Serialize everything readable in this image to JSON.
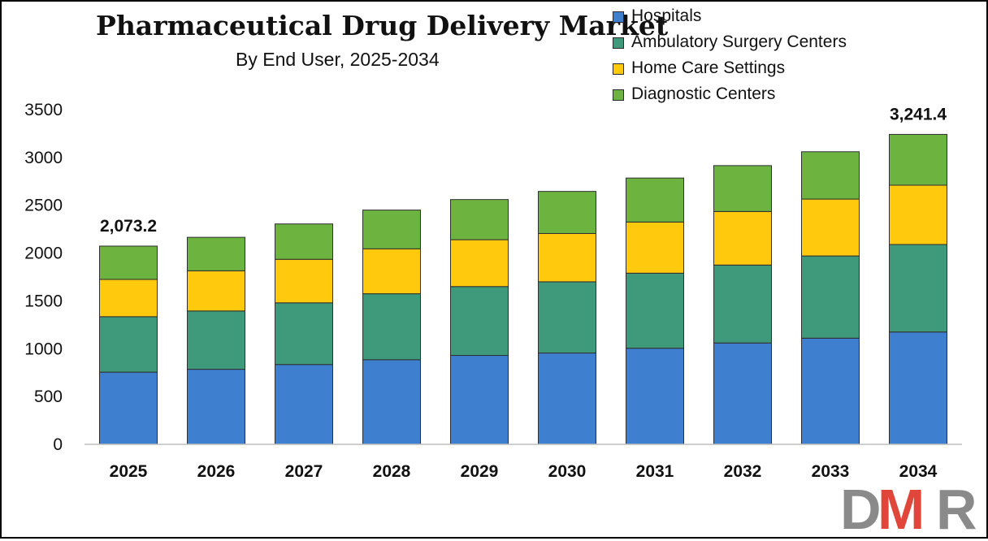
{
  "chart_data": {
    "type": "bar",
    "stacked": true,
    "title": "Pharmaceutical Drug Delivery Market",
    "subtitle": "By End User, 2025-2034",
    "xlabel": "",
    "ylabel": "",
    "ylim": [
      0,
      3500
    ],
    "yticks": [
      0,
      500,
      1000,
      1500,
      2000,
      2500,
      3000,
      3500
    ],
    "categories": [
      "2025",
      "2026",
      "2027",
      "2028",
      "2029",
      "2030",
      "2031",
      "2032",
      "2033",
      "2034"
    ],
    "series": [
      {
        "name": "Hospitals",
        "color": "#3f7fcf",
        "values": [
          755,
          785,
          835,
          885,
          930,
          955,
          1005,
          1060,
          1110,
          1175
        ]
      },
      {
        "name": "Ambulatory Surgery Centers",
        "color": "#3e9a7a",
        "values": [
          580,
          610,
          645,
          690,
          720,
          745,
          785,
          815,
          860,
          915
        ]
      },
      {
        "name": "Home Care Settings",
        "color": "#ffc90e",
        "values": [
          390,
          420,
          455,
          470,
          490,
          505,
          535,
          560,
          595,
          620
        ]
      },
      {
        "name": "Diagnostic Centers",
        "color": "#6db33f",
        "values": [
          348.2,
          350,
          370,
          405,
          420,
          440,
          460,
          480,
          495,
          531.4
        ]
      }
    ],
    "annotations": [
      {
        "category": "2025",
        "text": "2,073.2"
      },
      {
        "category": "2034",
        "text": "3,241.4"
      }
    ],
    "legend_position": "top-right",
    "grid": false
  },
  "logo": {
    "text": "DMR",
    "letters": [
      "D",
      "M",
      "R"
    ],
    "colors": [
      "#8a8a8a",
      "#e0463a",
      "#8a8a8a"
    ]
  }
}
